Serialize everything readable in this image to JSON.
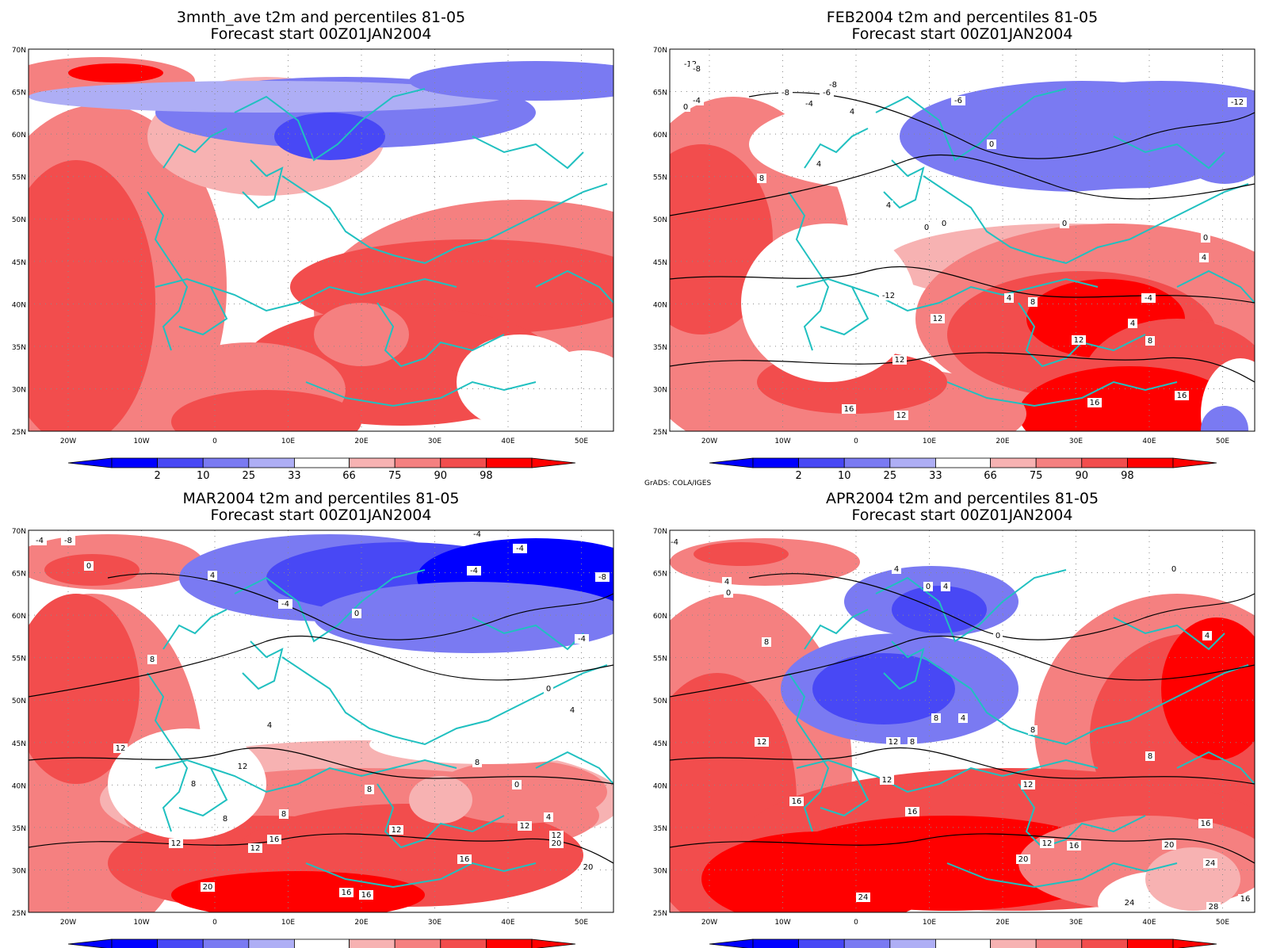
{
  "panels": [
    {
      "title_line1": "3mnth_ave t2m and percentiles 81-05",
      "title_line2": "Forecast start 00Z01JAN2004",
      "credit": "",
      "contour_labels": []
    },
    {
      "title_line1": "FEB2004 t2m and percentiles 81-05",
      "title_line2": "Forecast start 00Z01JAN2004",
      "credit": "GrADS: COLA/IGES",
      "contour_labels": [
        "-12",
        "-8",
        "-4",
        "0",
        "-8",
        "-6",
        "-4",
        "-8",
        "-6",
        "-12",
        "4",
        "0",
        "4",
        "8",
        "0",
        "0",
        "0",
        "4",
        "0",
        "4",
        "-4",
        "-12",
        "8",
        "4",
        "12",
        "4",
        "8",
        "12",
        "12",
        "16",
        "16",
        "16",
        "12"
      ]
    },
    {
      "title_line1": "MAR2004 t2m and percentiles 81-05",
      "title_line2": "Forecast start 00Z01JAN2004",
      "credit": "GrADS: COLA/IGES",
      "contour_labels": [
        "-4",
        "-8",
        "-4",
        "0",
        "4",
        "-4",
        "0",
        "-4",
        "-4",
        "-8",
        "-4",
        "8",
        "0",
        "4",
        "12",
        "4",
        "8",
        "12",
        "8",
        "8",
        "0",
        "8",
        "8",
        "4",
        "12",
        "12",
        "12",
        "12",
        "16",
        "12",
        "16",
        "20",
        "16",
        "20",
        "20",
        "16"
      ]
    },
    {
      "title_line1": "APR2004 t2m and percentiles 81-05",
      "title_line2": "Forecast start 00Z01JAN2004",
      "credit": "GrADS: COLA/IGES",
      "contour_labels": [
        "-4",
        "0",
        "4",
        "4",
        "0",
        "0",
        "4",
        "0",
        "4",
        "8",
        "4",
        "8",
        "8",
        "8",
        "12",
        "12",
        "12",
        "12",
        "8",
        "16",
        "16",
        "12",
        "20",
        "16",
        "20",
        "16",
        "24",
        "24",
        "16",
        "28",
        "24"
      ]
    }
  ],
  "map": {
    "lat_labels": [
      "70N",
      "65N",
      "60N",
      "55N",
      "50N",
      "45N",
      "40N",
      "35N",
      "30N",
      "25N"
    ],
    "lon_labels": [
      "20W",
      "10W",
      "0",
      "10E",
      "20E",
      "30E",
      "40E",
      "50E"
    ]
  },
  "colorbar": {
    "labels": [
      "2",
      "10",
      "25",
      "33",
      "66",
      "75",
      "90",
      "98"
    ],
    "colors": {
      "b1": "#0000ff",
      "b2": "#4848f5",
      "b3": "#7a7af2",
      "b4": "#aeaef5",
      "white": "#ffffff",
      "r1": "#f7b2b2",
      "r2": "#f58080",
      "r3": "#f24d4d",
      "r4": "#ff0000"
    }
  },
  "colors": {
    "coast": "#20c0c0",
    "contour": "#000000",
    "grid": "#8a8a8a"
  }
}
